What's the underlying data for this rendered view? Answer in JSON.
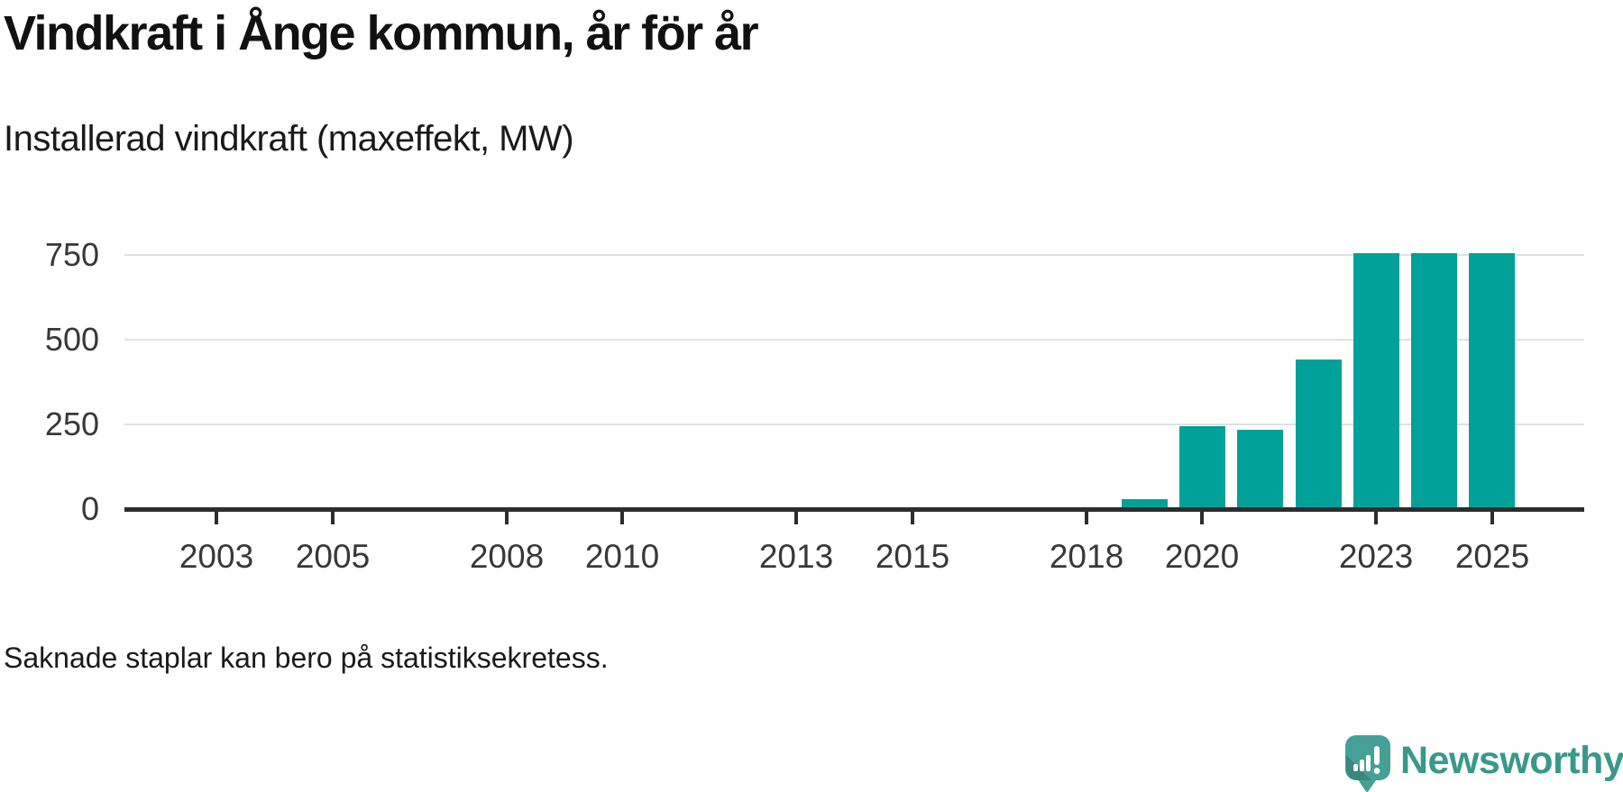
{
  "header": {
    "title": "Vindkraft i Ånge kommun, år för år",
    "subtitle": "Installerad vindkraft (maxeffekt, MW)"
  },
  "chart_data": {
    "type": "bar",
    "title": "Vindkraft i Ånge kommun, år för år",
    "subtitle": "Installerad vindkraft (maxeffekt, MW)",
    "unit": "MW",
    "ylabel": "Installerad vindkraft (maxeffekt, MW)",
    "xlabel": "",
    "bars": [
      {
        "year": 2019,
        "value": 25
      },
      {
        "year": 2020,
        "value": 240
      },
      {
        "year": 2021,
        "value": 230
      },
      {
        "year": 2022,
        "value": 435
      },
      {
        "year": 2023,
        "value": 750
      },
      {
        "year": 2024,
        "value": 750
      },
      {
        "year": 2025,
        "value": 750
      }
    ],
    "years_without_bars": [
      2002,
      2003,
      2004,
      2005,
      2006,
      2007,
      2008,
      2009,
      2010,
      2011,
      2012,
      2013,
      2014,
      2015,
      2016,
      2017,
      2018
    ],
    "xtick_labels": [
      2003,
      2005,
      2008,
      2010,
      2013,
      2015,
      2018,
      2020,
      2023,
      2025
    ],
    "yticks": [
      0,
      250,
      500,
      750
    ],
    "xlim": [
      2002,
      2026
    ],
    "ylim": [
      0,
      750
    ],
    "grid": true,
    "legend_position": "none",
    "bar_color": "#00a198",
    "axis_color": "#2d2d2d",
    "gridline_color": "#e0e0e0",
    "tick_label_color": "#383838"
  },
  "footnote": "Saknade staplar kan bero på statistiksekretess.",
  "logo": {
    "text": "Newsworthy",
    "icon": "newsworthy-speech-bubble-chart-icon",
    "text_color": "#39988c",
    "icon_color": "#45a195"
  }
}
